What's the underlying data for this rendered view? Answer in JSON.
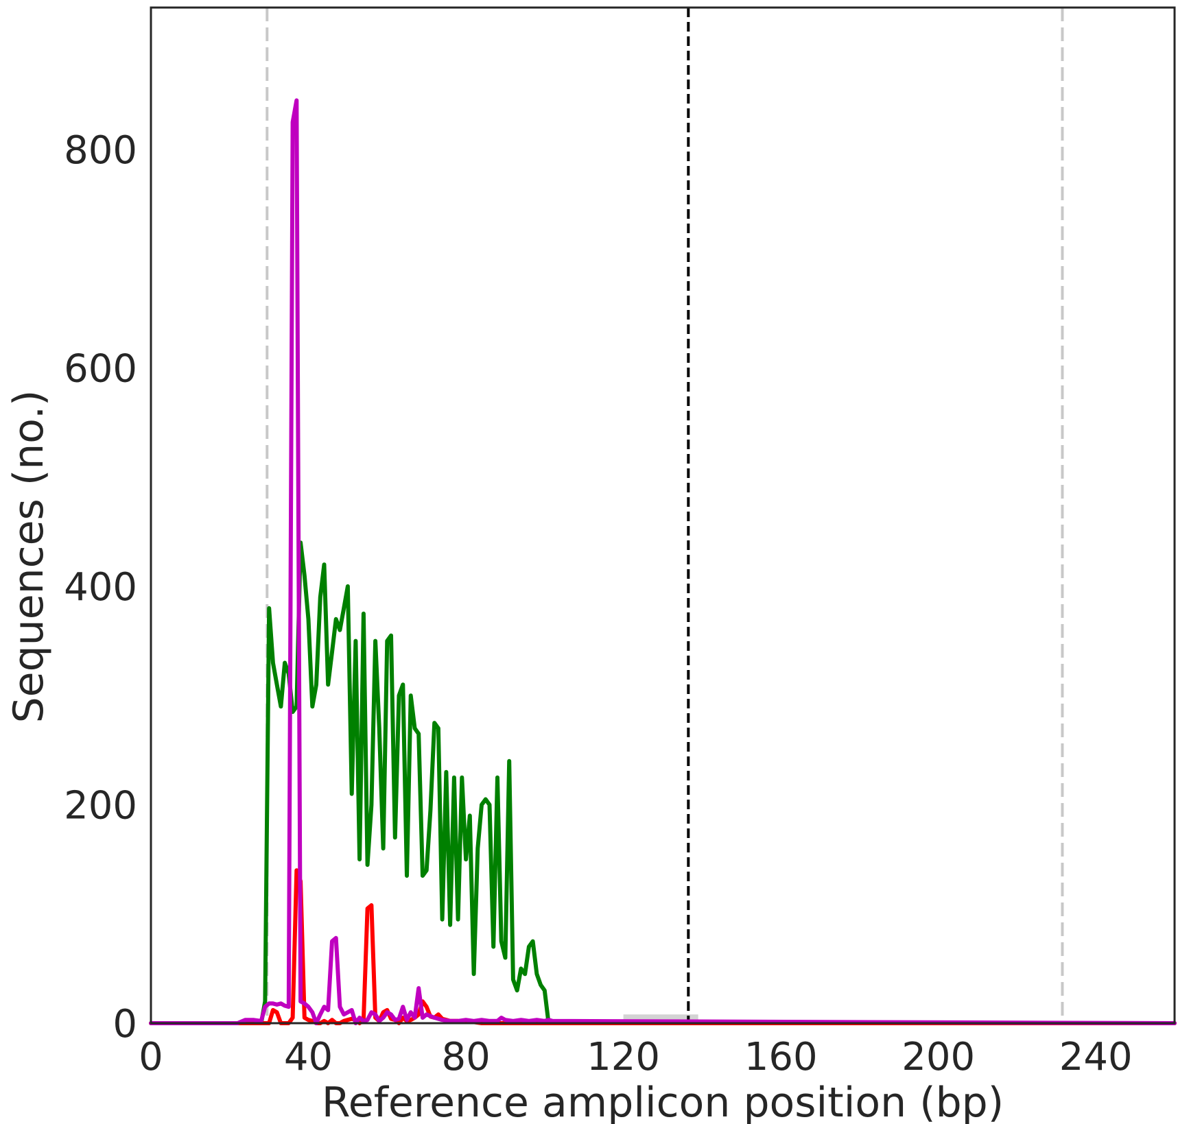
{
  "chart_data": {
    "type": "line",
    "title": "",
    "xlabel": "Reference amplicon position (bp)",
    "ylabel": "Sequences (no.)",
    "xlim": [
      0,
      260
    ],
    "ylim": [
      0,
      930
    ],
    "xticks": [
      0,
      40,
      80,
      120,
      160,
      200,
      240
    ],
    "yticks": [
      0,
      200,
      400,
      600,
      800
    ],
    "grid": false,
    "colors": {
      "green": "#008000",
      "red": "#ff0000",
      "magenta": "#bf00bf",
      "vline_gray": "#c8c8c8",
      "vline_black": "#000000",
      "band_gray": "#d3d3d3"
    },
    "reference_lines": [
      {
        "x": 29.5,
        "color": "#c8c8c8",
        "style": "dashed"
      },
      {
        "x": 136.5,
        "color": "#000000",
        "style": "dashed"
      },
      {
        "x": 231.5,
        "color": "#c8c8c8",
        "style": "dashed"
      }
    ],
    "shaded_region": {
      "x": [
        120,
        139
      ],
      "y": [
        0,
        8
      ],
      "color": "#d3d3d3"
    },
    "series": [
      {
        "color": "#008000",
        "x": [
          0,
          28,
          29,
          30,
          31,
          32,
          33,
          34,
          35,
          36,
          37,
          38,
          39,
          40,
          41,
          42,
          43,
          44,
          45,
          46,
          47,
          48,
          49,
          50,
          51,
          52,
          53,
          54,
          55,
          56,
          57,
          58,
          59,
          60,
          61,
          62,
          63,
          64,
          65,
          66,
          67,
          68,
          69,
          70,
          71,
          72,
          73,
          74,
          75,
          76,
          77,
          78,
          79,
          80,
          81,
          82,
          83,
          84,
          85,
          86,
          87,
          88,
          89,
          90,
          91,
          92,
          93,
          94,
          95,
          96,
          97,
          98,
          99,
          100,
          101,
          102,
          103,
          260
        ],
        "y": [
          0,
          0,
          20,
          380,
          330,
          310,
          290,
          330,
          320,
          285,
          290,
          440,
          410,
          370,
          290,
          310,
          390,
          420,
          310,
          340,
          370,
          360,
          380,
          400,
          210,
          350,
          150,
          375,
          145,
          200,
          350,
          270,
          160,
          350,
          355,
          170,
          300,
          310,
          135,
          300,
          270,
          265,
          135,
          140,
          195,
          275,
          270,
          95,
          230,
          90,
          225,
          95,
          225,
          150,
          190,
          45,
          160,
          200,
          205,
          200,
          70,
          225,
          75,
          60,
          240,
          40,
          30,
          50,
          45,
          70,
          75,
          45,
          35,
          30,
          0,
          0,
          0,
          0
        ]
      },
      {
        "color": "#ff0000",
        "x": [
          0,
          30,
          31,
          32,
          33,
          34,
          35,
          36,
          37,
          38,
          39,
          40,
          41,
          42,
          43,
          44,
          45,
          46,
          47,
          48,
          49,
          50,
          51,
          52,
          53,
          54,
          55,
          56,
          57,
          58,
          59,
          60,
          61,
          62,
          63,
          64,
          65,
          66,
          67,
          68,
          69,
          70,
          71,
          72,
          73,
          74,
          75,
          76,
          78,
          80,
          82,
          84,
          90,
          260
        ],
        "y": [
          0,
          0,
          12,
          10,
          0,
          0,
          0,
          5,
          140,
          130,
          5,
          3,
          2,
          0,
          0,
          2,
          0,
          3,
          0,
          0,
          2,
          3,
          4,
          3,
          0,
          3,
          105,
          108,
          5,
          2,
          10,
          12,
          4,
          3,
          0,
          5,
          2,
          3,
          5,
          8,
          20,
          15,
          6,
          5,
          8,
          4,
          3,
          2,
          2,
          1,
          1,
          0,
          0,
          0
        ]
      },
      {
        "color": "#bf00bf",
        "x": [
          0,
          22,
          24,
          26,
          28,
          29,
          30,
          31,
          32,
          33,
          34,
          35,
          36,
          37,
          38,
          39,
          40,
          41,
          42,
          43,
          44,
          45,
          46,
          47,
          48,
          49,
          50,
          51,
          52,
          53,
          54,
          55,
          56,
          57,
          58,
          59,
          60,
          61,
          62,
          63,
          64,
          65,
          66,
          67,
          68,
          69,
          70,
          72,
          74,
          76,
          78,
          80,
          82,
          84,
          86,
          88,
          89,
          90,
          92,
          94,
          96,
          98,
          100,
          101,
          102,
          260
        ],
        "y": [
          0,
          0,
          3,
          3,
          2,
          15,
          18,
          18,
          17,
          18,
          16,
          15,
          825,
          845,
          20,
          18,
          15,
          10,
          0,
          8,
          15,
          12,
          75,
          78,
          15,
          8,
          10,
          12,
          0,
          5,
          2,
          3,
          10,
          8,
          2,
          5,
          10,
          8,
          3,
          4,
          15,
          3,
          10,
          5,
          32,
          5,
          8,
          5,
          3,
          2,
          2,
          3,
          2,
          3,
          2,
          2,
          5,
          3,
          2,
          3,
          2,
          3,
          2,
          3,
          2,
          0
        ]
      }
    ]
  }
}
